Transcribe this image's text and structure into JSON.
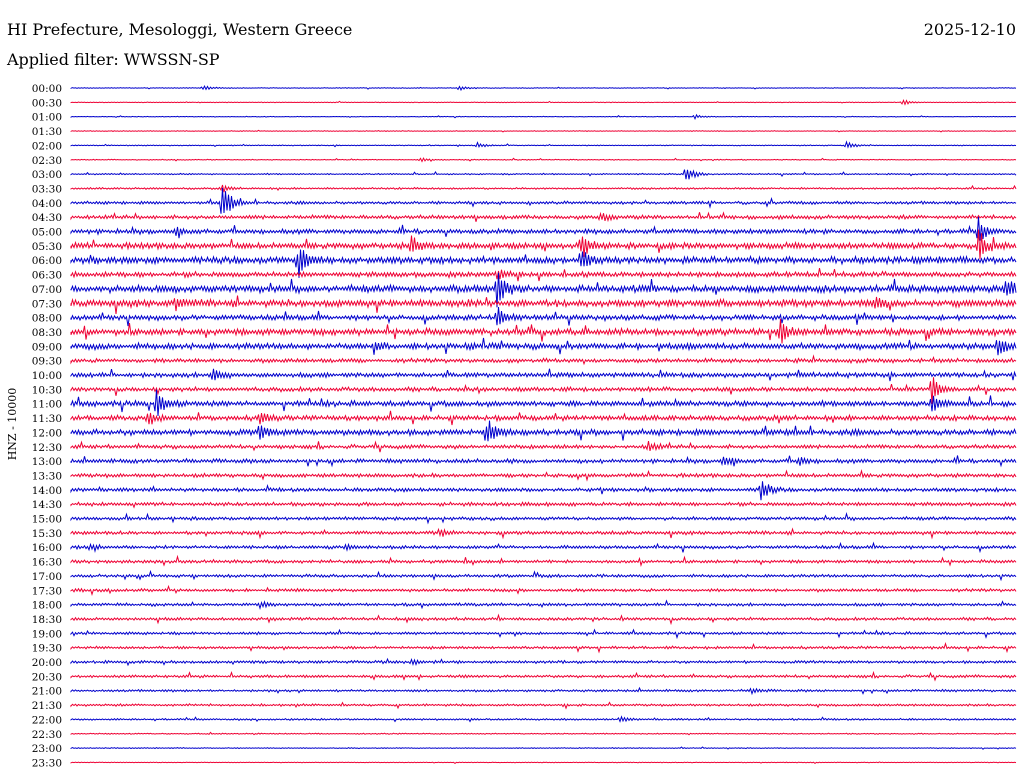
{
  "header": {
    "station": "HI Prefecture, Mesologgi, Western Greece",
    "date": "2025-12-10",
    "filter": "Applied filter: WWSSN-SP"
  },
  "chart_data": {
    "type": "line",
    "title": "HI Prefecture, Mesologgi, Western Greece",
    "date": "2025-12-10",
    "filter": "WWSSN-SP",
    "ylabel": "HNZ - 10000",
    "colors": [
      "#0000cc",
      "#ee0033"
    ],
    "rows": [
      "00:00",
      "00:30",
      "01:00",
      "01:30",
      "02:00",
      "02:30",
      "03:00",
      "03:30",
      "04:00",
      "04:30",
      "05:00",
      "05:30",
      "06:00",
      "06:30",
      "07:00",
      "07:30",
      "08:00",
      "08:30",
      "09:00",
      "09:30",
      "10:00",
      "10:30",
      "11:00",
      "11:30",
      "12:00",
      "12:30",
      "13:00",
      "13:30",
      "14:00",
      "14:30",
      "15:00",
      "15:30",
      "16:00",
      "16:30",
      "17:00",
      "17:30",
      "18:00",
      "18:30",
      "19:00",
      "19:30",
      "20:00",
      "20:30",
      "21:00",
      "21:30",
      "22:00",
      "22:30",
      "23:00",
      "23:30"
    ],
    "noise_level": [
      0.3,
      0.3,
      0.3,
      0.3,
      0.4,
      0.4,
      0.6,
      0.8,
      1.3,
      1.7,
      2.1,
      2.7,
      3.0,
      2.3,
      3.2,
      3.1,
      2.3,
      2.9,
      2.7,
      1.8,
      2.1,
      1.9,
      2.4,
      2.2,
      2.6,
      1.7,
      1.8,
      1.7,
      1.6,
      1.6,
      1.5,
      1.5,
      1.4,
      1.4,
      1.3,
      1.3,
      1.3,
      1.3,
      1.2,
      1.2,
      1.2,
      1.2,
      1.0,
      1.0,
      0.8,
      0.5,
      0.4,
      0.3
    ],
    "events": [
      {
        "row": 0,
        "x": 0.14,
        "amp": 3
      },
      {
        "row": 0,
        "x": 0.41,
        "amp": 3
      },
      {
        "row": 1,
        "x": 0.88,
        "amp": 3
      },
      {
        "row": 2,
        "x": 0.66,
        "amp": 2
      },
      {
        "row": 4,
        "x": 0.43,
        "amp": 3
      },
      {
        "row": 4,
        "x": 0.82,
        "amp": 4
      },
      {
        "row": 5,
        "x": 0.37,
        "amp": 2
      },
      {
        "row": 6,
        "x": 0.65,
        "amp": 10
      },
      {
        "row": 7,
        "x": 0.16,
        "amp": 3
      },
      {
        "row": 8,
        "x": 0.16,
        "amp": 22
      },
      {
        "row": 9,
        "x": 0.56,
        "amp": 4
      },
      {
        "row": 10,
        "x": 0.11,
        "amp": 4
      },
      {
        "row": 10,
        "x": 0.96,
        "amp": 12
      },
      {
        "row": 11,
        "x": 0.36,
        "amp": 10
      },
      {
        "row": 11,
        "x": 0.54,
        "amp": 14
      },
      {
        "row": 11,
        "x": 0.96,
        "amp": 16
      },
      {
        "row": 12,
        "x": 0.24,
        "amp": 18
      },
      {
        "row": 12,
        "x": 0.54,
        "amp": 12
      },
      {
        "row": 13,
        "x": 0.45,
        "amp": 6
      },
      {
        "row": 14,
        "x": 0.45,
        "amp": 20
      },
      {
        "row": 14,
        "x": 0.99,
        "amp": 10
      },
      {
        "row": 15,
        "x": 0.11,
        "amp": 6
      },
      {
        "row": 15,
        "x": 0.85,
        "amp": 7
      },
      {
        "row": 16,
        "x": 0.45,
        "amp": 12
      },
      {
        "row": 17,
        "x": 0.75,
        "amp": 14
      },
      {
        "row": 18,
        "x": 0.32,
        "amp": 7
      },
      {
        "row": 18,
        "x": 0.98,
        "amp": 12
      },
      {
        "row": 20,
        "x": 0.15,
        "amp": 8
      },
      {
        "row": 21,
        "x": 0.91,
        "amp": 16
      },
      {
        "row": 22,
        "x": 0.09,
        "amp": 14
      },
      {
        "row": 22,
        "x": 0.91,
        "amp": 10
      },
      {
        "row": 23,
        "x": 0.08,
        "amp": 8
      },
      {
        "row": 23,
        "x": 0.2,
        "amp": 6
      },
      {
        "row": 24,
        "x": 0.44,
        "amp": 18
      },
      {
        "row": 24,
        "x": 0.2,
        "amp": 7
      },
      {
        "row": 25,
        "x": 0.61,
        "amp": 6
      },
      {
        "row": 26,
        "x": 0.69,
        "amp": 6
      },
      {
        "row": 26,
        "x": 0.77,
        "amp": 4
      },
      {
        "row": 28,
        "x": 0.73,
        "amp": 12
      },
      {
        "row": 31,
        "x": 0.39,
        "amp": 4
      },
      {
        "row": 32,
        "x": 0.02,
        "amp": 4
      },
      {
        "row": 32,
        "x": 0.29,
        "amp": 3
      },
      {
        "row": 36,
        "x": 0.2,
        "amp": 3
      },
      {
        "row": 40,
        "x": 0.36,
        "amp": 3
      },
      {
        "row": 42,
        "x": 0.72,
        "amp": 3
      },
      {
        "row": 44,
        "x": 0.58,
        "amp": 3
      }
    ]
  }
}
